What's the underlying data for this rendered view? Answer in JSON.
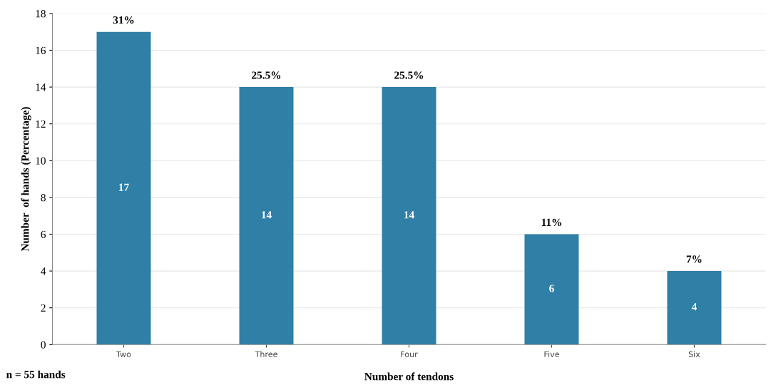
{
  "chart_data": {
    "type": "bar",
    "xlabel": "Number of tendons",
    "ylabel": "Number  of hands (Percentage)",
    "categories": [
      "Two",
      "Three",
      "Four",
      "Five",
      "Six"
    ],
    "values": [
      17,
      14,
      14,
      6,
      4
    ],
    "color": "#2f7fa6",
    "data_labels": true,
    "ylim": [
      0,
      18
    ],
    "yticks": [
      0,
      2,
      4,
      6,
      8,
      10,
      12,
      14,
      16,
      18
    ],
    "grid": "y",
    "annotations": [
      {
        "text": "31%",
        "x": "Two",
        "y": 17
      },
      {
        "text": "25.5%",
        "x": "Three",
        "y": 14
      },
      {
        "text": "25.5%",
        "x": "Four",
        "y": 14
      },
      {
        "text": "11%",
        "x": "Five",
        "y": 6
      },
      {
        "text": "7%",
        "x": "Six",
        "y": 4
      },
      "n = 55 hands"
    ]
  }
}
